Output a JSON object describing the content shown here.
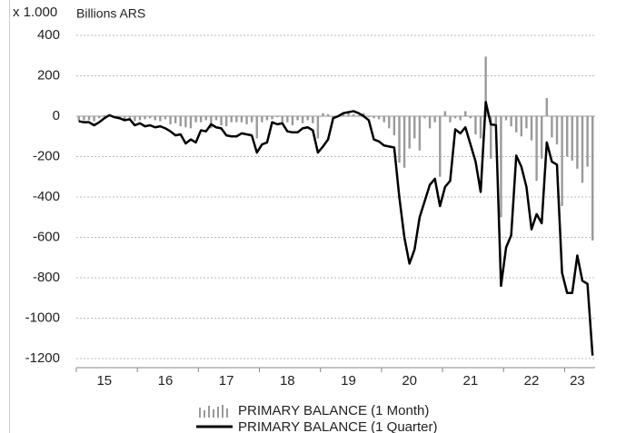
{
  "chart_data": {
    "type": "bar_line",
    "unit_label": "x 1.000",
    "y_label": "Billions ARS",
    "categories": [
      null,
      null,
      null,
      null,
      null,
      "15",
      null,
      null,
      null,
      null,
      null,
      null,
      null,
      null,
      null,
      null,
      null,
      "16",
      null,
      null,
      null,
      null,
      null,
      null,
      null,
      null,
      null,
      null,
      null,
      "17",
      null,
      null,
      null,
      null,
      null,
      null,
      null,
      null,
      null,
      null,
      null,
      "18",
      null,
      null,
      null,
      null,
      null,
      null,
      null,
      null,
      null,
      null,
      null,
      "19",
      null,
      null,
      null,
      null,
      null,
      null,
      null,
      null,
      null,
      null,
      null,
      "20",
      null,
      null,
      null,
      null,
      null,
      null,
      null,
      null,
      null,
      null,
      null,
      "21",
      null,
      null,
      null,
      null,
      null,
      null,
      null,
      null,
      null,
      null,
      null,
      "22",
      null,
      null,
      null,
      null,
      null,
      null,
      null,
      null,
      "23",
      null,
      null,
      null
    ],
    "series": [
      {
        "name": "PRIMARY BALANCE (1 Month)",
        "color": "#9a9a9a",
        "kind": "bar",
        "values": [
          -25,
          -20,
          -20,
          -25,
          -10,
          5,
          5,
          -10,
          -5,
          -15,
          -10,
          -25,
          -20,
          -15,
          -10,
          -20,
          -25,
          -15,
          -40,
          -35,
          -50,
          -55,
          -60,
          -30,
          -30,
          -20,
          -60,
          -20,
          -45,
          -50,
          -30,
          -30,
          -30,
          -40,
          -30,
          -110,
          -30,
          -20,
          -15,
          -5,
          -30,
          -30,
          -45,
          -20,
          -35,
          -20,
          -35,
          -110,
          15,
          10,
          -10,
          5,
          10,
          20,
          10,
          5,
          15,
          -5,
          -10,
          -15,
          -30,
          -60,
          -95,
          -230,
          -255,
          -160,
          -110,
          -170,
          -10,
          -60,
          -30,
          -300,
          25,
          -30,
          -10,
          -20,
          25,
          -10,
          -90,
          -110,
          295,
          -210,
          -40,
          -500,
          -20,
          -50,
          -80,
          -100,
          -60,
          -120,
          -320,
          -210,
          90,
          -105,
          -140,
          -445,
          -200,
          -220,
          -260,
          -330,
          -250,
          -615
        ]
      },
      {
        "name": "PRIMARY BALANCE (1 Quarter)",
        "color": "#000000",
        "kind": "line",
        "values": [
          -25,
          -30,
          -30,
          -45,
          -30,
          -10,
          5,
          -5,
          -10,
          -20,
          -15,
          -45,
          -35,
          -50,
          -45,
          -55,
          -50,
          -60,
          -75,
          -95,
          -90,
          -135,
          -115,
          -130,
          -70,
          -75,
          -40,
          -55,
          -60,
          -95,
          -100,
          -100,
          -85,
          -90,
          -95,
          -180,
          -140,
          -130,
          -30,
          -40,
          -35,
          -75,
          -80,
          -80,
          -60,
          -55,
          -70,
          -180,
          -150,
          -115,
          -10,
          0,
          15,
          20,
          25,
          15,
          0,
          -20,
          -115,
          -125,
          -145,
          -150,
          -155,
          -400,
          -600,
          -730,
          -660,
          -500,
          -420,
          -340,
          -310,
          -445,
          -350,
          -320,
          -65,
          -85,
          -55,
          -140,
          -225,
          -375,
          70,
          -40,
          -45,
          -840,
          -650,
          -590,
          -195,
          -250,
          -350,
          -560,
          -485,
          -530,
          -130,
          -225,
          -240,
          -775,
          -875,
          -875,
          -690,
          -815,
          -830,
          -1185
        ]
      }
    ],
    "ylim": [
      -1200,
      400
    ],
    "yticks": [
      -1200,
      -1000,
      -800,
      -600,
      -400,
      -200,
      0,
      200,
      400
    ],
    "grid": true
  }
}
